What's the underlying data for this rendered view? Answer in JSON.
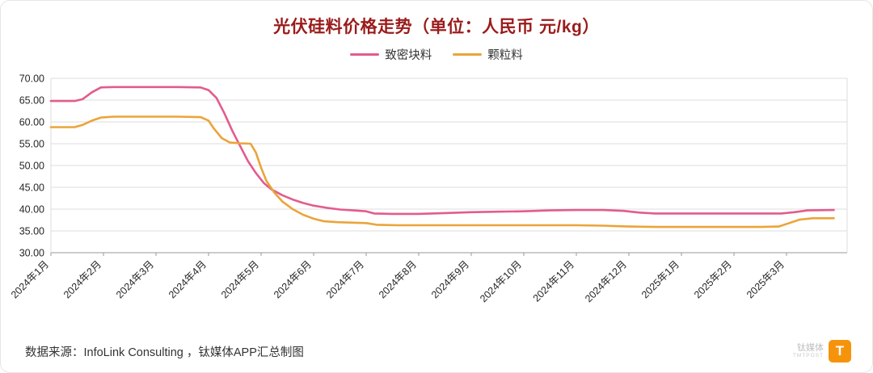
{
  "page": {
    "title": "光伏硅料价格走势（单位：人民币 元/kg）",
    "title_color": "#9a1b1b",
    "source_note": "数据来源：InfoLink Consulting ，钛媒体APP汇总制图",
    "brand": {
      "name_cn": "钛媒体",
      "name_en": "TMTPOST",
      "logo_letter": "T",
      "logo_color": "#f5940c"
    }
  },
  "chart_data": {
    "type": "line",
    "title": "光伏硅料价格走势（单位：人民币 元/kg）",
    "xlabel": "",
    "ylabel": "",
    "x_unit": "month_index (0 = 2024年1月, weekly price points)",
    "x_tick_labels": [
      "2024年1月",
      "2024年2月",
      "2024年3月",
      "2024年4月",
      "2024年5月",
      "2024年6月",
      "2024年7月",
      "2024年8月",
      "2024年9月",
      "2024年10月",
      "2024年11月",
      "2024年12月",
      "2025年1月",
      "2025年2月",
      "2025年3月"
    ],
    "ylim": [
      30,
      70
    ],
    "ytick_step": 5,
    "ytick_labels": [
      "70.00",
      "65.00",
      "60.00",
      "55.00",
      "50.00",
      "45.00",
      "40.00",
      "35.00",
      "30.00"
    ],
    "grid": "horizontal",
    "legend_position": "top",
    "series": [
      {
        "name": "致密块料",
        "color": "#e25c8d",
        "points": [
          [
            0,
            64.8
          ],
          [
            0.45,
            64.8
          ],
          [
            0.6,
            65.2
          ],
          [
            0.78,
            66.8
          ],
          [
            0.95,
            67.9
          ],
          [
            1.2,
            68
          ],
          [
            1.8,
            68
          ],
          [
            2.4,
            68
          ],
          [
            2.85,
            67.9
          ],
          [
            3.0,
            67.3
          ],
          [
            3.15,
            65.5
          ],
          [
            3.3,
            62
          ],
          [
            3.45,
            58
          ],
          [
            3.6,
            54.5
          ],
          [
            3.75,
            51
          ],
          [
            3.9,
            48.3
          ],
          [
            4.05,
            46
          ],
          [
            4.2,
            44.5
          ],
          [
            4.4,
            43.2
          ],
          [
            4.6,
            42.2
          ],
          [
            4.8,
            41.4
          ],
          [
            5.0,
            40.8
          ],
          [
            5.25,
            40.3
          ],
          [
            5.5,
            39.9
          ],
          [
            5.75,
            39.7
          ],
          [
            6.0,
            39.5
          ],
          [
            6.15,
            39
          ],
          [
            6.5,
            38.9
          ],
          [
            7.0,
            38.9
          ],
          [
            7.5,
            39.1
          ],
          [
            8.0,
            39.3
          ],
          [
            8.5,
            39.4
          ],
          [
            9.0,
            39.5
          ],
          [
            9.5,
            39.7
          ],
          [
            10.0,
            39.8
          ],
          [
            10.5,
            39.8
          ],
          [
            10.9,
            39.6
          ],
          [
            11.2,
            39.2
          ],
          [
            11.5,
            39
          ],
          [
            12.0,
            39
          ],
          [
            12.5,
            39
          ],
          [
            13.0,
            39
          ],
          [
            13.5,
            39
          ],
          [
            13.9,
            39
          ],
          [
            14.15,
            39.3
          ],
          [
            14.4,
            39.7
          ],
          [
            14.9,
            39.8
          ]
        ]
      },
      {
        "name": "颗粒料",
        "color": "#eba43a",
        "points": [
          [
            0,
            58.8
          ],
          [
            0.45,
            58.8
          ],
          [
            0.6,
            59.3
          ],
          [
            0.78,
            60.3
          ],
          [
            0.95,
            61
          ],
          [
            1.2,
            61.2
          ],
          [
            1.8,
            61.2
          ],
          [
            2.4,
            61.2
          ],
          [
            2.85,
            61.1
          ],
          [
            3.0,
            60.3
          ],
          [
            3.1,
            58.5
          ],
          [
            3.25,
            56.3
          ],
          [
            3.4,
            55.3
          ],
          [
            3.6,
            55.1
          ],
          [
            3.8,
            55
          ],
          [
            3.9,
            53
          ],
          [
            4.0,
            49.5
          ],
          [
            4.1,
            46.5
          ],
          [
            4.25,
            43.8
          ],
          [
            4.4,
            41.8
          ],
          [
            4.6,
            40
          ],
          [
            4.8,
            38.7
          ],
          [
            5.0,
            37.8
          ],
          [
            5.2,
            37.2
          ],
          [
            5.45,
            37
          ],
          [
            5.7,
            36.9
          ],
          [
            6.0,
            36.8
          ],
          [
            6.2,
            36.4
          ],
          [
            6.6,
            36.3
          ],
          [
            7.0,
            36.3
          ],
          [
            7.5,
            36.3
          ],
          [
            8.0,
            36.3
          ],
          [
            8.5,
            36.3
          ],
          [
            9.0,
            36.3
          ],
          [
            9.5,
            36.3
          ],
          [
            10.0,
            36.3
          ],
          [
            10.5,
            36.2
          ],
          [
            11.0,
            36
          ],
          [
            11.5,
            35.9
          ],
          [
            12.0,
            35.9
          ],
          [
            12.5,
            35.9
          ],
          [
            13.0,
            35.9
          ],
          [
            13.5,
            35.9
          ],
          [
            13.85,
            36
          ],
          [
            14.05,
            36.8
          ],
          [
            14.25,
            37.6
          ],
          [
            14.5,
            37.9
          ],
          [
            14.9,
            37.9
          ]
        ]
      }
    ]
  }
}
